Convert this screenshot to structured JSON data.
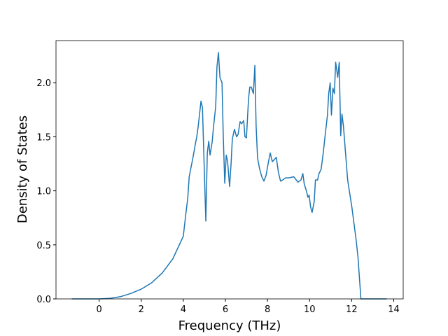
{
  "chart_data": {
    "type": "line",
    "xlabel": "Frequency (THz)",
    "ylabel": "Density of States",
    "x": [
      -1.3,
      0,
      0.5,
      1,
      1.5,
      2,
      2.5,
      3,
      3.5,
      4,
      4.11,
      4.21,
      4.28,
      4.38,
      4.48,
      4.58,
      4.64,
      4.71,
      4.84,
      4.91,
      5.07,
      5.14,
      5.21,
      5.27,
      5.37,
      5.44,
      5.54,
      5.6,
      5.67,
      5.74,
      5.84,
      5.9,
      5.97,
      6.04,
      6.1,
      6.2,
      6.27,
      6.33,
      6.43,
      6.53,
      6.6,
      6.7,
      6.77,
      6.87,
      6.93,
      7.0,
      7.1,
      7.16,
      7.23,
      7.33,
      7.4,
      7.46,
      7.53,
      7.63,
      7.73,
      7.83,
      7.93,
      8.03,
      8.13,
      8.23,
      8.33,
      8.42,
      8.52,
      8.62,
      8.72,
      8.86,
      9.02,
      9.25,
      9.45,
      9.59,
      9.68,
      9.75,
      9.85,
      9.92,
      9.98,
      10.05,
      10.12,
      10.22,
      10.28,
      10.38,
      10.45,
      10.55,
      10.65,
      10.75,
      10.85,
      10.91,
      10.98,
      11.04,
      11.11,
      11.18,
      11.24,
      11.34,
      11.41,
      11.48,
      11.54,
      11.61,
      11.71,
      11.81,
      12.01,
      12.21,
      12.3,
      12.44,
      13.67
    ],
    "series": [
      {
        "name": "DOS",
        "color": "#1f77b4",
        "values": [
          0,
          0,
          0.005,
          0.02,
          0.05,
          0.09,
          0.15,
          0.24,
          0.37,
          0.58,
          0.77,
          0.93,
          1.13,
          1.23,
          1.33,
          1.44,
          1.5,
          1.6,
          1.83,
          1.77,
          0.72,
          1.35,
          1.46,
          1.33,
          1.45,
          1.6,
          1.78,
          2.15,
          2.28,
          2.05,
          2.0,
          1.5,
          1.07,
          1.33,
          1.28,
          1.04,
          1.25,
          1.48,
          1.57,
          1.5,
          1.52,
          1.64,
          1.62,
          1.65,
          1.5,
          1.49,
          1.85,
          1.96,
          1.96,
          1.9,
          2.16,
          1.6,
          1.3,
          1.2,
          1.13,
          1.09,
          1.14,
          1.25,
          1.35,
          1.27,
          1.29,
          1.31,
          1.17,
          1.09,
          1.1,
          1.12,
          1.12,
          1.13,
          1.08,
          1.1,
          1.16,
          1.06,
          1.0,
          0.94,
          0.96,
          0.85,
          0.8,
          0.9,
          1.1,
          1.1,
          1.16,
          1.2,
          1.35,
          1.53,
          1.7,
          1.9,
          2.0,
          1.7,
          1.95,
          1.9,
          2.19,
          2.05,
          2.19,
          1.51,
          1.71,
          1.6,
          1.35,
          1.1,
          0.85,
          0.55,
          0.39,
          0,
          0
        ]
      }
    ],
    "xlim": [
      -2.05,
      14.45
    ],
    "xticks": [
      0,
      2,
      4,
      6,
      8,
      10,
      12,
      14
    ],
    "ylim": [
      0,
      2.39
    ],
    "yticks": [
      {
        "value": 0,
        "label": "0.0"
      },
      {
        "value": 0.5,
        "label": "0.5"
      },
      {
        "value": 1,
        "label": "1.0"
      },
      {
        "value": 1.5,
        "label": "1.5"
      },
      {
        "value": 2,
        "label": "2.0"
      }
    ]
  }
}
